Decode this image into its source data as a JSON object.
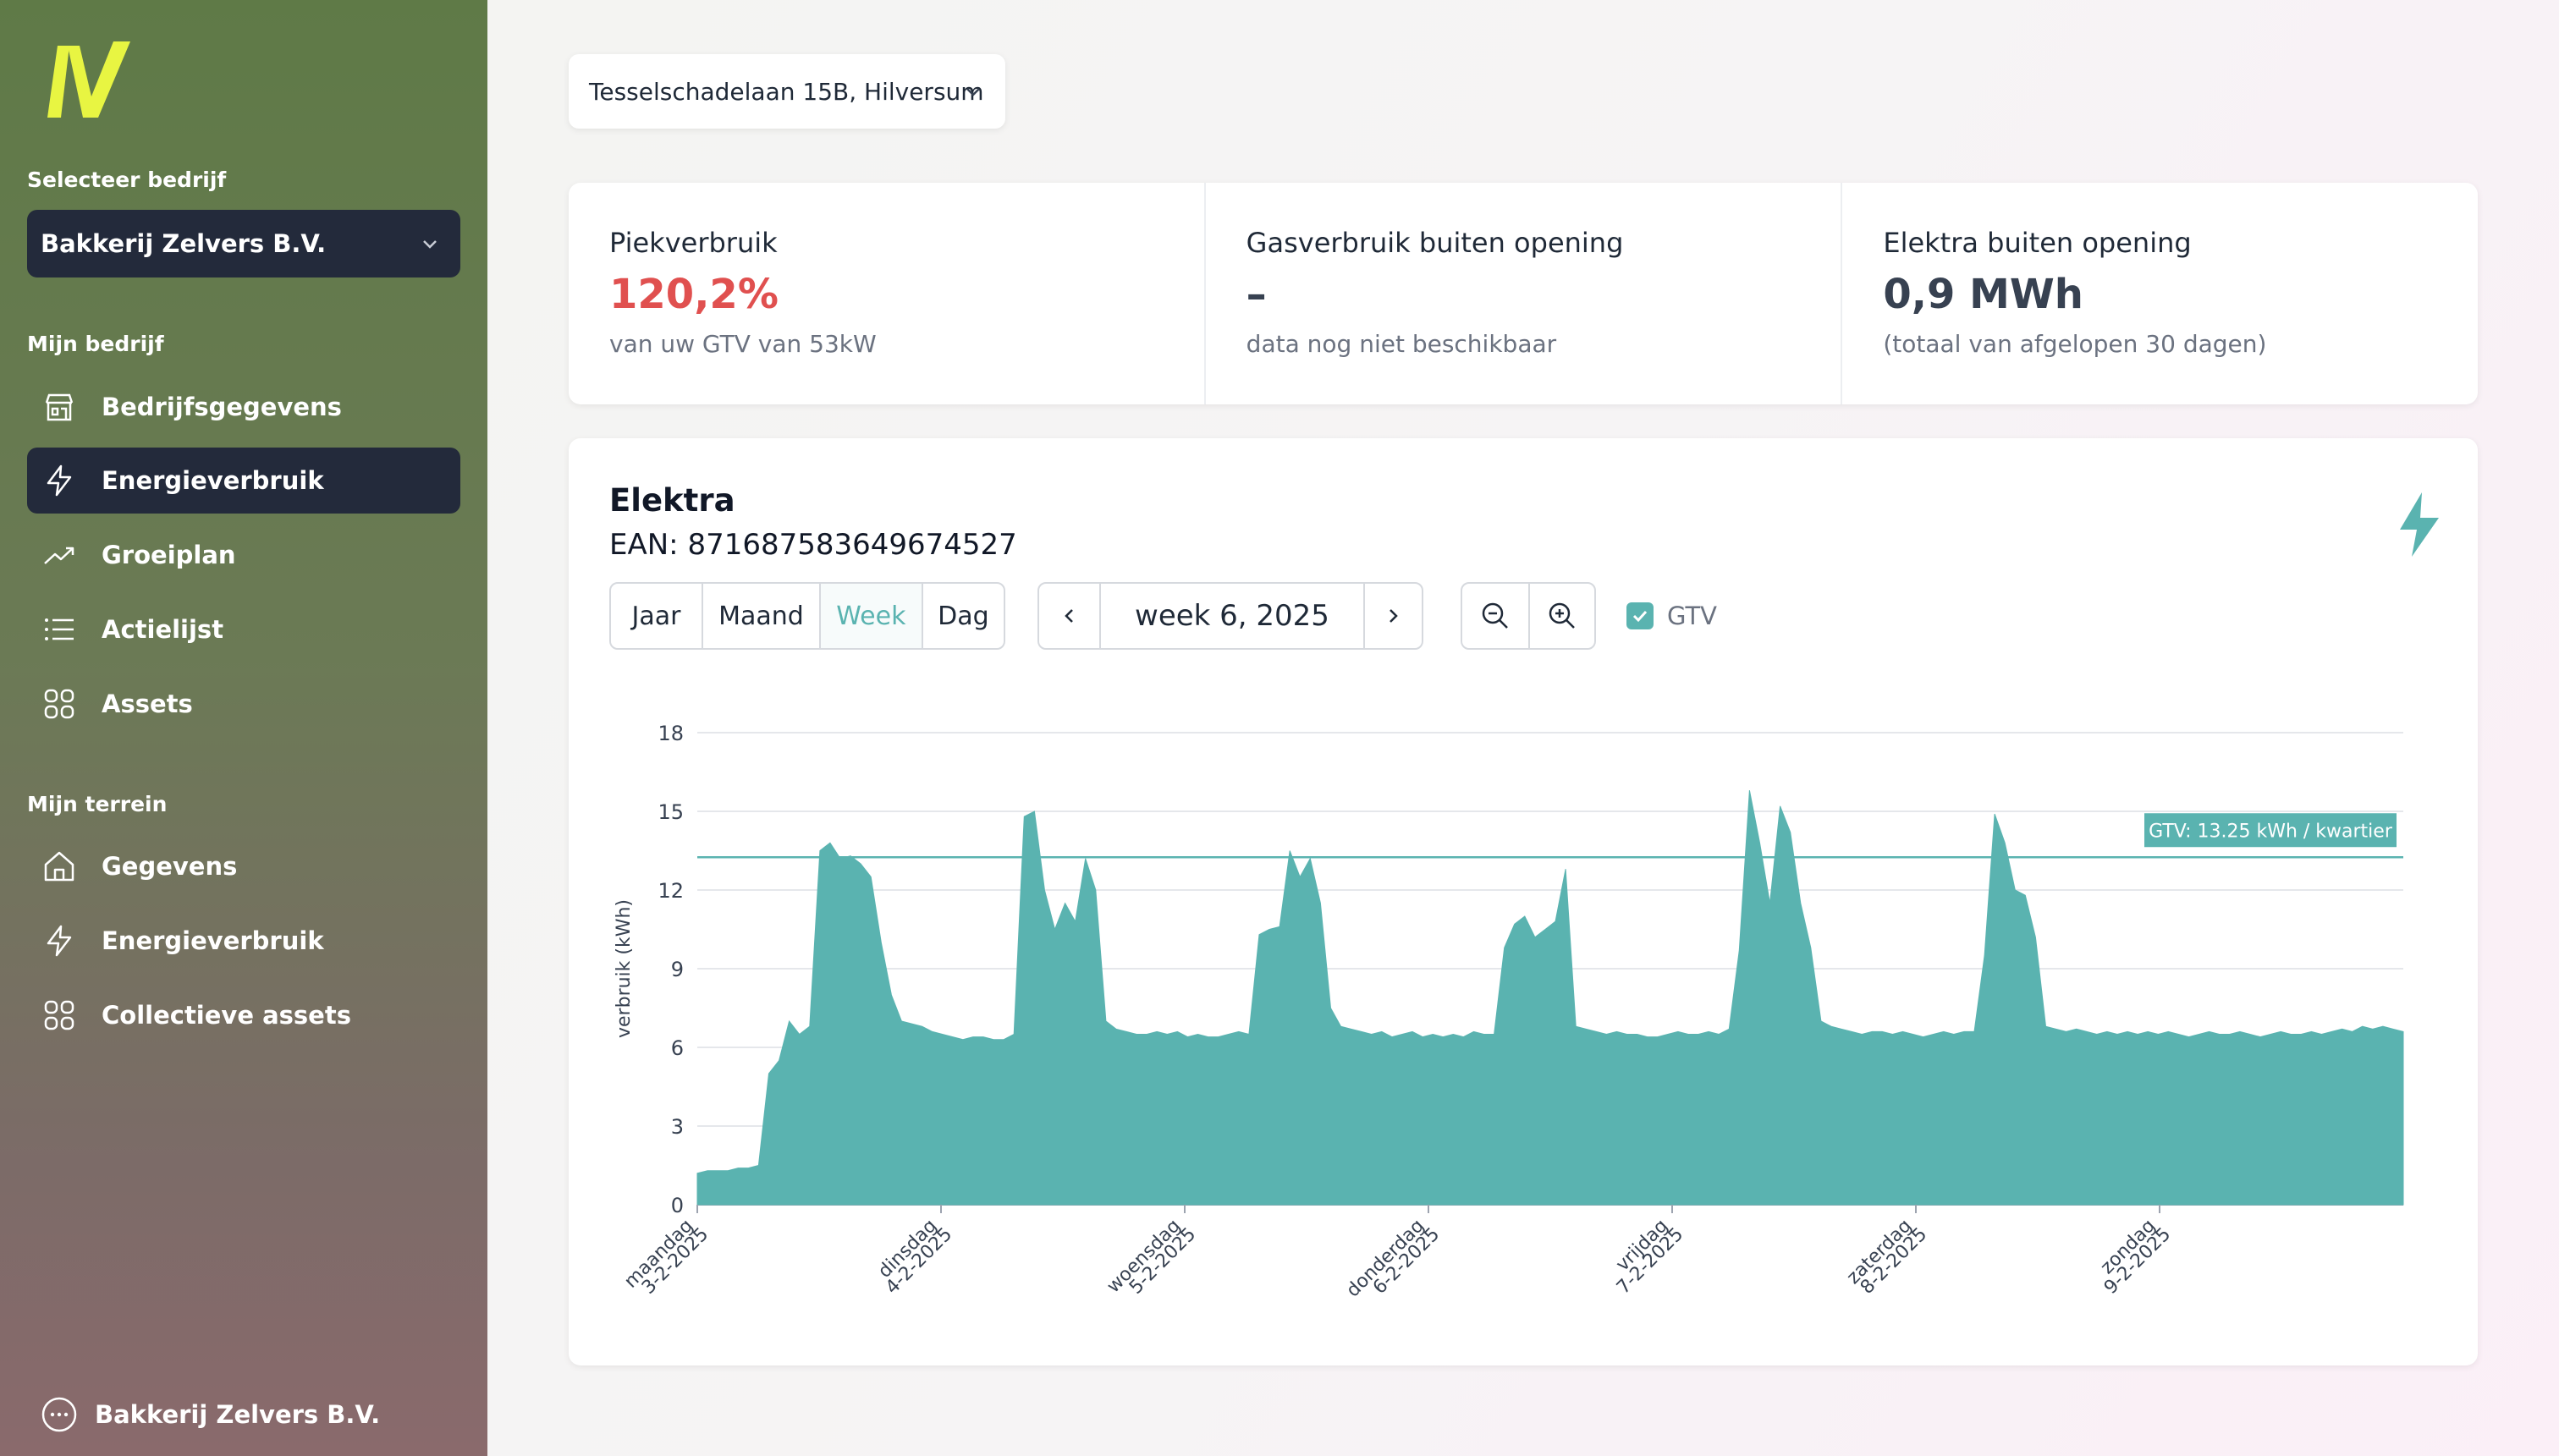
{
  "sidebar": {
    "select_label": "Selecteer bedrijf",
    "company": "Bakkerij Zelvers B.V.",
    "section1": "Mijn bedrijf",
    "section1_items": [
      {
        "label": "Bedrijfsgegevens",
        "icon": "building-icon"
      },
      {
        "label": "Energieverbruik",
        "icon": "bolt-icon",
        "active": true
      },
      {
        "label": "Groeiplan",
        "icon": "trend-up-icon"
      },
      {
        "label": "Actielijst",
        "icon": "list-icon"
      },
      {
        "label": "Assets",
        "icon": "grid-icon"
      }
    ],
    "section2": "Mijn terrein",
    "section2_items": [
      {
        "label": "Gegevens",
        "icon": "home-icon"
      },
      {
        "label": "Energieverbruik",
        "icon": "bolt-icon"
      },
      {
        "label": "Collectieve assets",
        "icon": "grid-icon"
      }
    ],
    "footer": "Bakkerij Zelvers B.V.",
    "logo_color": "#e8f542"
  },
  "address": "Tesselschadelaan 15B, Hilversum",
  "stats": [
    {
      "title": "Piekverbruik",
      "value": "120,2%",
      "sub": "van uw GTV van 53kW",
      "value_color": "#e0504f"
    },
    {
      "title": "Gasverbruik buiten opening",
      "value": "–",
      "sub": "data nog niet beschikbaar"
    },
    {
      "title": "Elektra buiten opening",
      "value": "0,9 MWh",
      "sub": "(totaal van afgelopen 30 dagen)"
    }
  ],
  "panel": {
    "title": "Elektra",
    "ean": "EAN: 871687583649674527",
    "periods": [
      "Jaar",
      "Maand",
      "Week",
      "Dag"
    ],
    "selected_period": "Week",
    "period_value": "week 6, 2025",
    "gtv_checkbox": "GTV",
    "accent": "#5ab3b0"
  },
  "chart_data": {
    "type": "area",
    "ylabel": "verbruik (kWh)",
    "ylim": [
      0,
      18
    ],
    "yticks": [
      0,
      3,
      6,
      9,
      12,
      15,
      18
    ],
    "xticks": [
      {
        "day": "maandag",
        "date": "3-2-2025"
      },
      {
        "day": "dinsdag",
        "date": "4-2-2025"
      },
      {
        "day": "woensdag",
        "date": "5-2-2025"
      },
      {
        "day": "donderdag",
        "date": "6-2-2025"
      },
      {
        "day": "vrijdag",
        "date": "7-2-2025"
      },
      {
        "day": "zaterdag",
        "date": "8-2-2025"
      },
      {
        "day": "zondag",
        "date": "9-2-2025"
      }
    ],
    "gtv_value": 13.25,
    "gtv_label": "GTV: 13.25 kWh / kwartier",
    "series": [
      {
        "values_per_hour": [
          1.2,
          1.3,
          1.3,
          1.3,
          1.4,
          1.4,
          1.5,
          5,
          5.5,
          7,
          6.5,
          6.8,
          13.5,
          13.8,
          13.2,
          13.3,
          13,
          12.5,
          10,
          8,
          7,
          6.9,
          6.8,
          6.6,
          6.5,
          6.4,
          6.3,
          6.4,
          6.4,
          6.3,
          6.3,
          6.5,
          14.8,
          15,
          12,
          10.5,
          11.5,
          10.8,
          13.2,
          12,
          7,
          6.7,
          6.6,
          6.5,
          6.5,
          6.6,
          6.5,
          6.6,
          6.4,
          6.5,
          6.4,
          6.4,
          6.5,
          6.6,
          6.5,
          10.3,
          10.5,
          10.6,
          13.5,
          12.5,
          13.2,
          11.5,
          7.5,
          6.8,
          6.7,
          6.6,
          6.5,
          6.6,
          6.4,
          6.5,
          6.6,
          6.4,
          6.5,
          6.4,
          6.5,
          6.4,
          6.6,
          6.5,
          6.5,
          9.8,
          10.7,
          11,
          10.2,
          10.5,
          10.8,
          12.8,
          6.8,
          6.7,
          6.6,
          6.5,
          6.6,
          6.5,
          6.5,
          6.4,
          6.4,
          6.5,
          6.6,
          6.5,
          6.5,
          6.6,
          6.5,
          6.7,
          9.7,
          15.8,
          13.8,
          11.5,
          15.2,
          14.2,
          11.5,
          9.8,
          7,
          6.8,
          6.7,
          6.6,
          6.5,
          6.6,
          6.6,
          6.5,
          6.6,
          6.5,
          6.4,
          6.5,
          6.6,
          6.5,
          6.6,
          6.6,
          9.5,
          14.9,
          13.8,
          12,
          11.8,
          10.2,
          6.8,
          6.7,
          6.6,
          6.7,
          6.6,
          6.5,
          6.6,
          6.5,
          6.6,
          6.5,
          6.6,
          6.5,
          6.6,
          6.5,
          6.4,
          6.5,
          6.6,
          6.5,
          6.5,
          6.6,
          6.5,
          6.4,
          6.5,
          6.6,
          6.5,
          6.5,
          6.6,
          6.5,
          6.6,
          6.7,
          6.6,
          6.8,
          6.7,
          6.8,
          6.7,
          6.6
        ]
      }
    ]
  }
}
